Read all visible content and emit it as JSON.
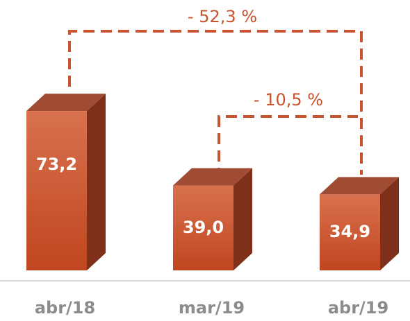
{
  "chart_data": {
    "type": "bar3d",
    "categories": [
      "abr/18",
      "mar/19",
      "abr/19"
    ],
    "values": [
      73.2,
      39.0,
      34.9
    ],
    "value_labels": [
      "73,2",
      "39,0",
      "34,9"
    ],
    "color": "#c8532e",
    "annotations": [
      "- 52,3 %",
      "- 10,5 %"
    ]
  }
}
